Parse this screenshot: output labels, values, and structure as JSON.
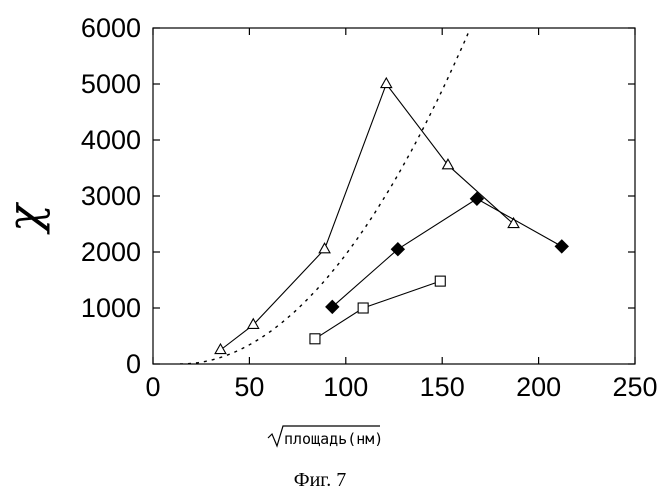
{
  "chart_data": {
    "type": "line",
    "xlabel": "площадь(нм)",
    "ylabel": "χ",
    "caption": "Фиг. 7",
    "xlim": [
      0,
      250
    ],
    "ylim": [
      0,
      6000
    ],
    "x_ticks": [
      0,
      50,
      100,
      150,
      200,
      250
    ],
    "y_ticks": [
      0,
      1000,
      2000,
      3000,
      4000,
      5000,
      6000
    ],
    "grid": false,
    "series": [
      {
        "marker": "triangle",
        "points": [
          [
            35,
            250
          ],
          [
            52,
            700
          ],
          [
            89,
            2050
          ],
          [
            121,
            5000
          ],
          [
            153,
            3550
          ],
          [
            187,
            2500
          ]
        ]
      },
      {
        "marker": "diamond",
        "points": [
          [
            93,
            1020
          ],
          [
            127,
            2050
          ],
          [
            168,
            2950
          ],
          [
            212,
            2100
          ]
        ]
      },
      {
        "marker": "square",
        "points": [
          [
            84,
            450
          ],
          [
            109,
            1000
          ],
          [
            149,
            1480
          ]
        ]
      },
      {
        "marker": "none",
        "style": "dashed",
        "curve": "power",
        "exponent": 2,
        "points": [
          [
            14,
            0
          ],
          [
            40,
            200
          ],
          [
            60,
            600
          ],
          [
            80,
            1220
          ],
          [
            100,
            2020
          ],
          [
            120,
            3000
          ],
          [
            140,
            4200
          ],
          [
            160,
            5600
          ],
          [
            164,
            5950
          ]
        ]
      }
    ]
  }
}
